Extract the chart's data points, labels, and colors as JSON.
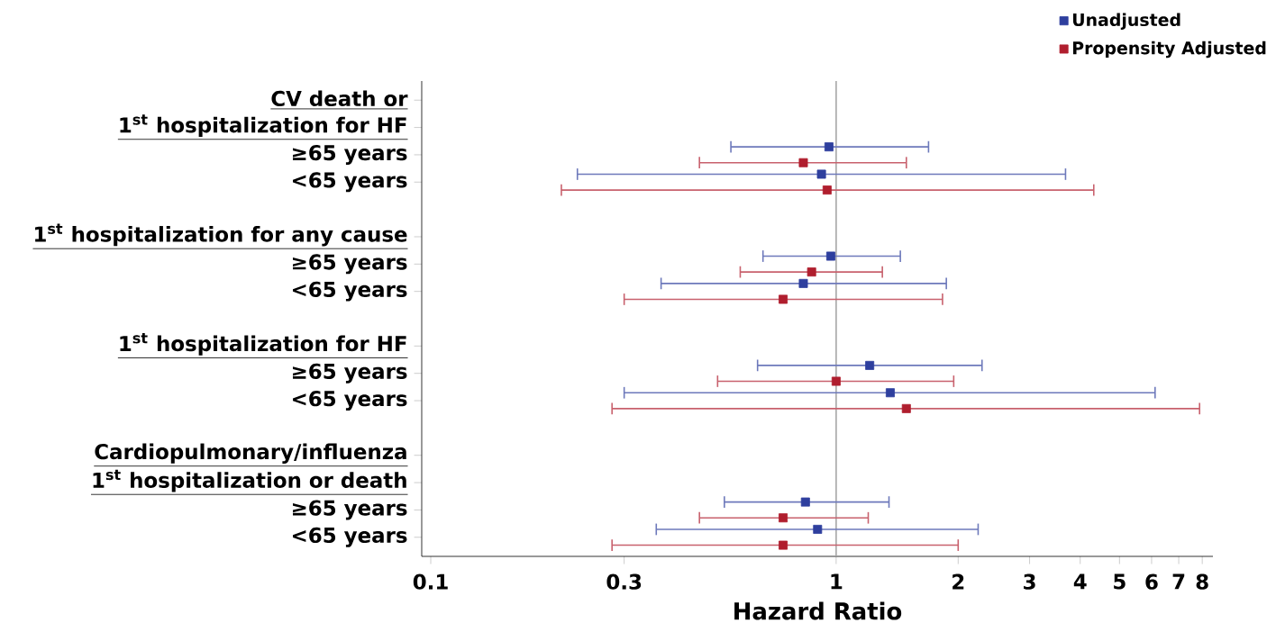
{
  "chart_data": {
    "type": "scatter",
    "orientation": "horizontal",
    "xlabel": "Hazard Ratio",
    "log": "x",
    "marker": "square",
    "legend": "top right",
    "categories": [
      "CV death or",
      "1$^{st}$ hospitalization for HF",
      "≥65 years",
      "<65 years",
      "1$^{st}$ hospitalization for any cause",
      "≥65 years",
      "<65 years",
      "1$^{st}$ hospitalization for HF",
      "≥65 years",
      "<65 years",
      "Cardiopulmonary/influenza",
      "1$^{st}$ hospitalization or death",
      "≥65 years",
      "<65 years"
    ],
    "series": [
      {
        "name": "Unadjusted",
        "color": "#2e3f9e",
        "values": [
          null,
          null,
          0.96,
          0.92,
          null,
          0.97,
          0.83,
          null,
          1.21,
          1.36,
          null,
          null,
          0.84,
          0.9
        ],
        "errors": [
          null,
          null,
          [
            0.55,
            1.69
          ],
          [
            0.23,
            3.68
          ],
          null,
          [
            0.66,
            1.44
          ],
          [
            0.37,
            1.87
          ],
          null,
          [
            0.64,
            2.29
          ],
          [
            0.3,
            6.12
          ],
          null,
          null,
          [
            0.53,
            1.35
          ],
          [
            0.36,
            2.24
          ]
        ]
      },
      {
        "name": "Propensity Adjusted",
        "color": "#b01e2e",
        "values": [
          null,
          null,
          0.83,
          0.95,
          null,
          0.87,
          0.74,
          null,
          1.0,
          1.49,
          null,
          null,
          0.74,
          0.74
        ],
        "errors": [
          null,
          null,
          [
            0.46,
            1.49
          ],
          [
            0.21,
            4.32
          ],
          null,
          [
            0.58,
            1.3
          ],
          [
            0.3,
            1.83
          ],
          null,
          [
            0.51,
            1.95
          ],
          [
            0.28,
            7.88
          ],
          null,
          null,
          [
            0.46,
            1.2
          ],
          [
            0.28,
            2.0
          ]
        ]
      }
    ],
    "xlim": [
      0.095,
      8.5
    ],
    "xticks": [
      0.1,
      0.3,
      1,
      2,
      3,
      4,
      5,
      6,
      7,
      8
    ],
    "ref_lines": [
      {
        "axis": "x",
        "value": 1,
        "color": "#a6a6a6"
      }
    ]
  }
}
